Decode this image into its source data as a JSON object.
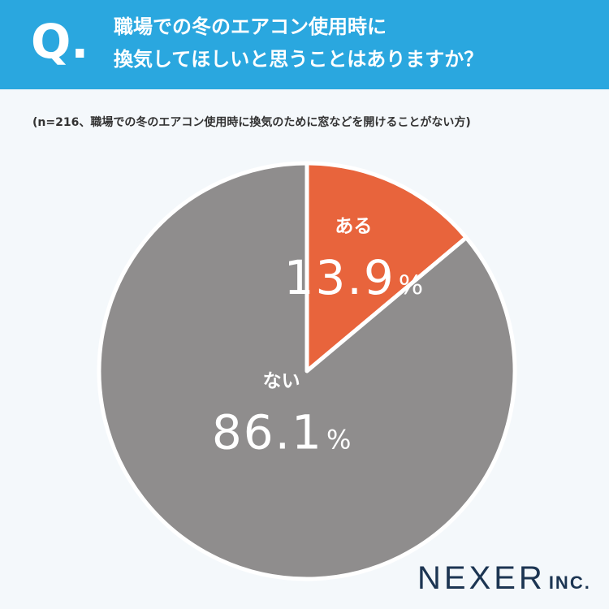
{
  "header": {
    "q_mark": "Q.",
    "question_line1": "職場での冬のエアコン使用時に",
    "question_line2": "換気してほしいと思うことはありますか？"
  },
  "note": "(n=216、職場での冬のエアコン使用時に換気のために窓などを開けることがない方)",
  "brand": {
    "name": "NEXER",
    "suffix": "INC."
  },
  "chart_data": {
    "type": "pie",
    "title": "",
    "slices": [
      {
        "label": "ある",
        "value": 13.9,
        "display": "13.9",
        "unit": "%",
        "color": "#e8643c"
      },
      {
        "label": "ない",
        "value": 86.1,
        "display": "86.1",
        "unit": "%",
        "color": "#8f8d8d"
      }
    ]
  }
}
